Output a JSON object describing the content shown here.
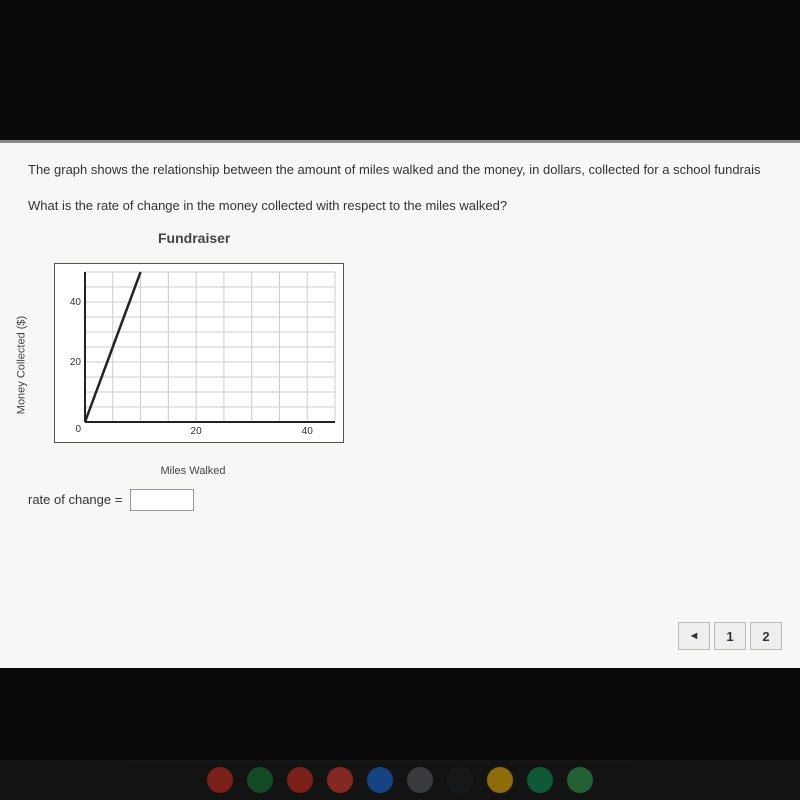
{
  "problem": {
    "intro": "The graph shows the relationship between the amount of miles walked and the money, in dollars, collected for a school fundrais",
    "question": "What is the rate of change in the money collected with respect to the miles walked?",
    "chart_title": "Fundraiser",
    "answer_label": "rate of change =",
    "answer_value": ""
  },
  "chart": {
    "type": "line",
    "xlabel": "Miles Walked",
    "ylabel": "Money Collected ($)",
    "xlim": [
      0,
      45
    ],
    "ylim": [
      0,
      50
    ],
    "xticks": [
      20,
      40
    ],
    "yticks": [
      20,
      40
    ],
    "x_grid_step": 5,
    "y_grid_step": 5,
    "background_color": "#ffffff",
    "grid_color": "#cccccc",
    "axis_color": "#222222",
    "line_color": "#222222",
    "line_width": 2.5,
    "tick_fontsize": 10,
    "label_fontsize": 11,
    "title_fontsize": 14,
    "data": {
      "x": [
        0,
        10
      ],
      "y": [
        0,
        50
      ]
    },
    "origin_label": "0"
  },
  "pager": {
    "prev": "◄",
    "page1": "1",
    "page2": "2"
  },
  "taskbar_colors": [
    "#d93025",
    "#188038",
    "#d93025",
    "#ea4335",
    "#1a73e8",
    "#5f6368",
    "#202124",
    "#fbbc04",
    "#0f9d58",
    "#34a853"
  ]
}
